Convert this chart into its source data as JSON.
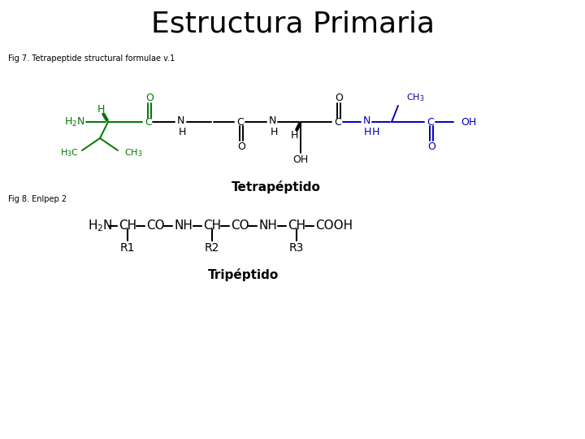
{
  "title": "Estructura Primaria",
  "fig7_label": "Fig 7. Tetrapeptide structural formulae v.1",
  "fig8_label": "Fig 8. Enlpep 2",
  "tetrapeptido_label": "Tetrapéptido",
  "tripeptido_label": "Tripéptido",
  "green": "#007700",
  "blue": "#0000BB",
  "black": "#000000",
  "bg_color": "#ffffff",
  "title_fs": 26,
  "body_fs": 9,
  "mol_fs": 9,
  "sub_fs": 7
}
